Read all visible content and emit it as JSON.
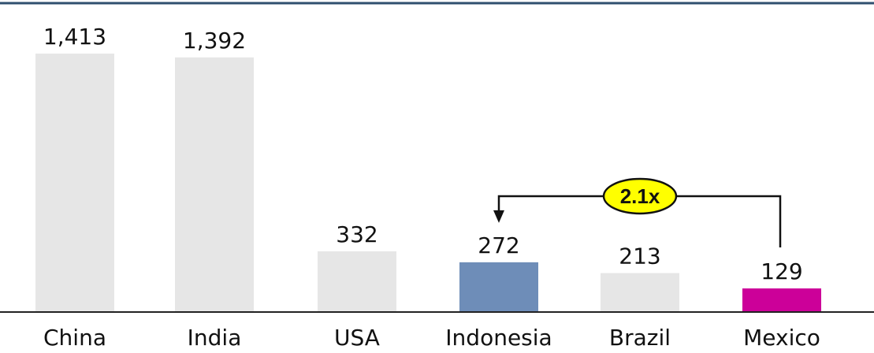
{
  "chart_data": {
    "type": "bar",
    "categories": [
      "China",
      "India",
      "USA",
      "Indonesia",
      "Brazil",
      "Mexico"
    ],
    "values": [
      1413,
      1392,
      332,
      272,
      213,
      129
    ],
    "value_labels": [
      "1,413",
      "1,392",
      "332",
      "272",
      "213",
      "129"
    ],
    "ylim": [
      0,
      1413
    ],
    "grid": false,
    "legend": "none",
    "colors": {
      "default": "#e6e6e6",
      "Indonesia": "#6e8db8",
      "Mexico": "#cc0099",
      "top_rule": "#2f4f6f",
      "baseline": "#222222",
      "badge_fill": "#ffff00",
      "badge_stroke": "#111111"
    },
    "annotation": {
      "label": "2.1x",
      "from": "Mexico",
      "to": "Indonesia",
      "shape": "ellipse-badge"
    }
  }
}
